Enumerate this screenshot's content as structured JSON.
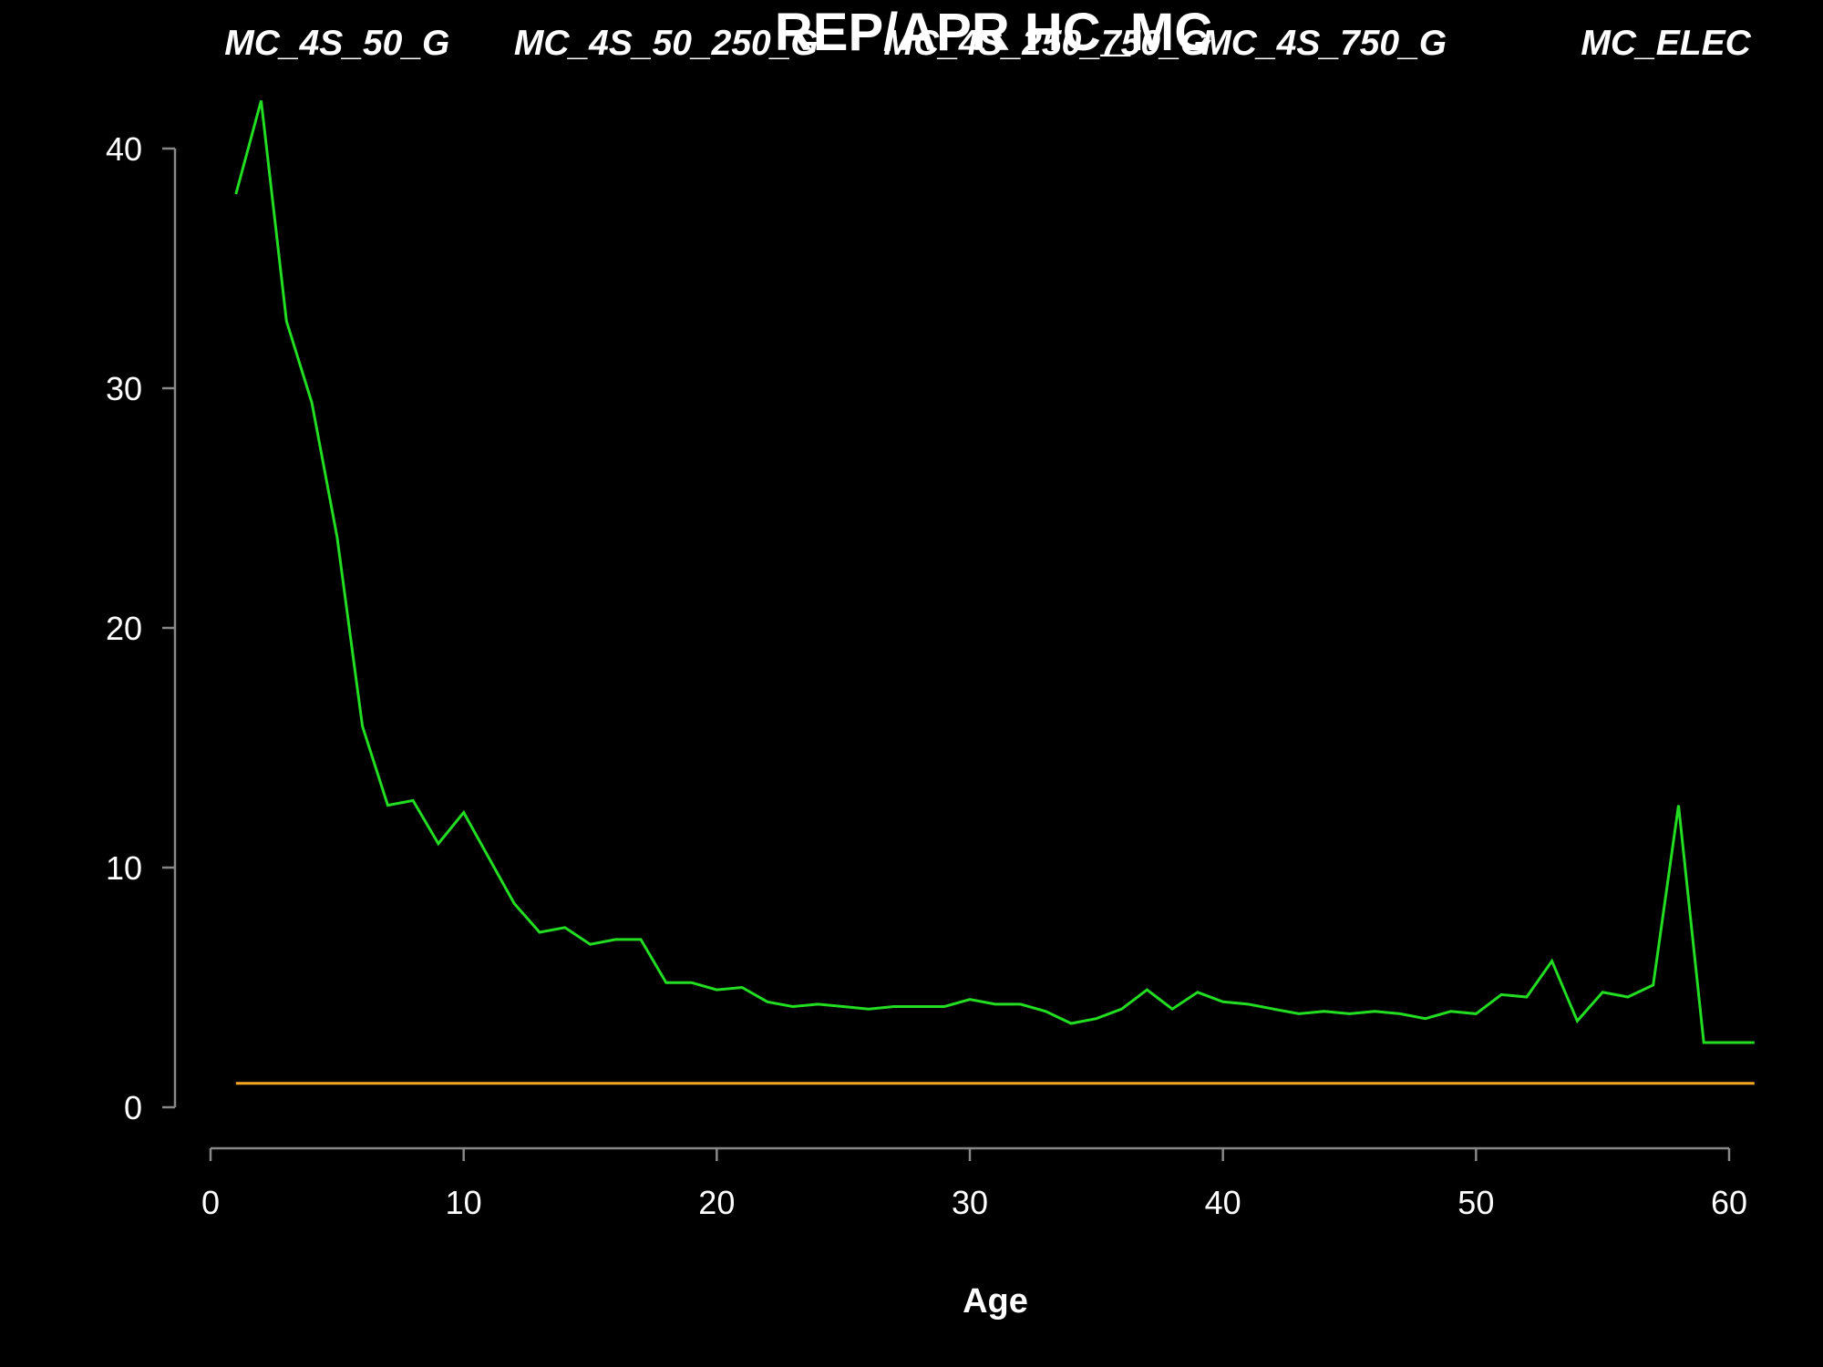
{
  "chart_data": {
    "type": "line",
    "title": "REP/APR HC_MC",
    "xlabel": "Age",
    "ylabel": "",
    "xlim": [
      0,
      61
    ],
    "ylim": [
      0,
      42
    ],
    "x_ticks": [
      0,
      10,
      20,
      30,
      40,
      50,
      60
    ],
    "y_ticks": [
      0,
      10,
      20,
      30,
      40
    ],
    "grid": false,
    "legend": "none",
    "background_color": "#000000",
    "axis_color": "#888888",
    "group_labels": [
      {
        "text": "MC_4S_50_G",
        "x": 5
      },
      {
        "text": "MC_4S_50_250_G",
        "x": 18
      },
      {
        "text": "MC_4S_250_750_G",
        "x": 33
      },
      {
        "text": "MC_4S_750_G",
        "x": 44
      },
      {
        "text": "MC_ELEC",
        "x": 57.5
      }
    ],
    "series": [
      {
        "color": "#22dd22",
        "x": [
          1,
          2,
          3,
          4,
          5,
          6,
          7,
          8,
          9,
          10,
          11,
          12,
          13,
          14,
          15,
          16,
          17,
          18,
          19,
          20,
          21,
          22,
          23,
          24,
          25,
          26,
          27,
          28,
          29,
          30,
          31,
          32,
          33,
          34,
          35,
          36,
          37,
          38,
          39,
          40,
          41,
          42,
          43,
          44,
          45,
          46,
          47,
          48,
          49,
          50,
          51,
          52,
          53,
          54,
          55,
          56,
          57,
          58,
          59,
          60,
          61
        ],
        "values": [
          38.1,
          42.0,
          32.8,
          29.4,
          23.8,
          15.9,
          12.6,
          12.8,
          11.0,
          12.3,
          10.4,
          8.5,
          7.3,
          7.5,
          6.8,
          7.0,
          7.0,
          5.2,
          5.2,
          4.9,
          5.0,
          4.4,
          4.2,
          4.3,
          4.2,
          4.1,
          4.2,
          4.2,
          4.2,
          4.5,
          4.3,
          4.3,
          4.0,
          3.5,
          3.7,
          4.1,
          4.9,
          4.1,
          4.8,
          4.4,
          4.3,
          4.1,
          3.9,
          4.0,
          3.9,
          4.0,
          3.9,
          3.7,
          4.0,
          3.9,
          4.7,
          4.6,
          6.1,
          3.6,
          4.8,
          4.6,
          5.1,
          12.6,
          2.7,
          2.7,
          2.7
        ]
      },
      {
        "color": "#f5a623",
        "x": [
          1,
          61
        ],
        "values": [
          1.0,
          1.0
        ]
      }
    ]
  }
}
